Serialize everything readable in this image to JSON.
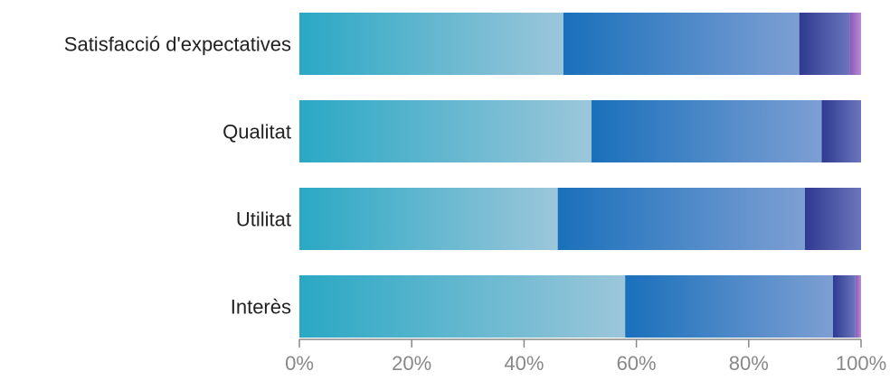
{
  "chart_data": {
    "type": "bar",
    "orientation": "horizontal",
    "stacked": true,
    "normalized": true,
    "categories": [
      "Satisfacció d'expectatives",
      "Qualitat",
      "Utilitat",
      "Interès"
    ],
    "series": [
      {
        "values": [
          47,
          52,
          46,
          58
        ],
        "color_start": "#2aa8c4",
        "color_end": "#9cc6da"
      },
      {
        "values": [
          42,
          41,
          44,
          37
        ],
        "color_start": "#1a70bb",
        "color_end": "#7d9fd3"
      },
      {
        "values": [
          9,
          7,
          10,
          4
        ],
        "color_start": "#2e3a90",
        "color_end": "#6c76bd"
      },
      {
        "values": [
          2,
          0,
          0,
          1
        ],
        "color_start": "#8a5ab8",
        "color_end": "#b98ad6"
      }
    ],
    "x_ticks": [
      "0%",
      "20%",
      "40%",
      "60%",
      "80%",
      "100%"
    ],
    "xlim": [
      0,
      100
    ],
    "grid": false,
    "legend": "none"
  }
}
